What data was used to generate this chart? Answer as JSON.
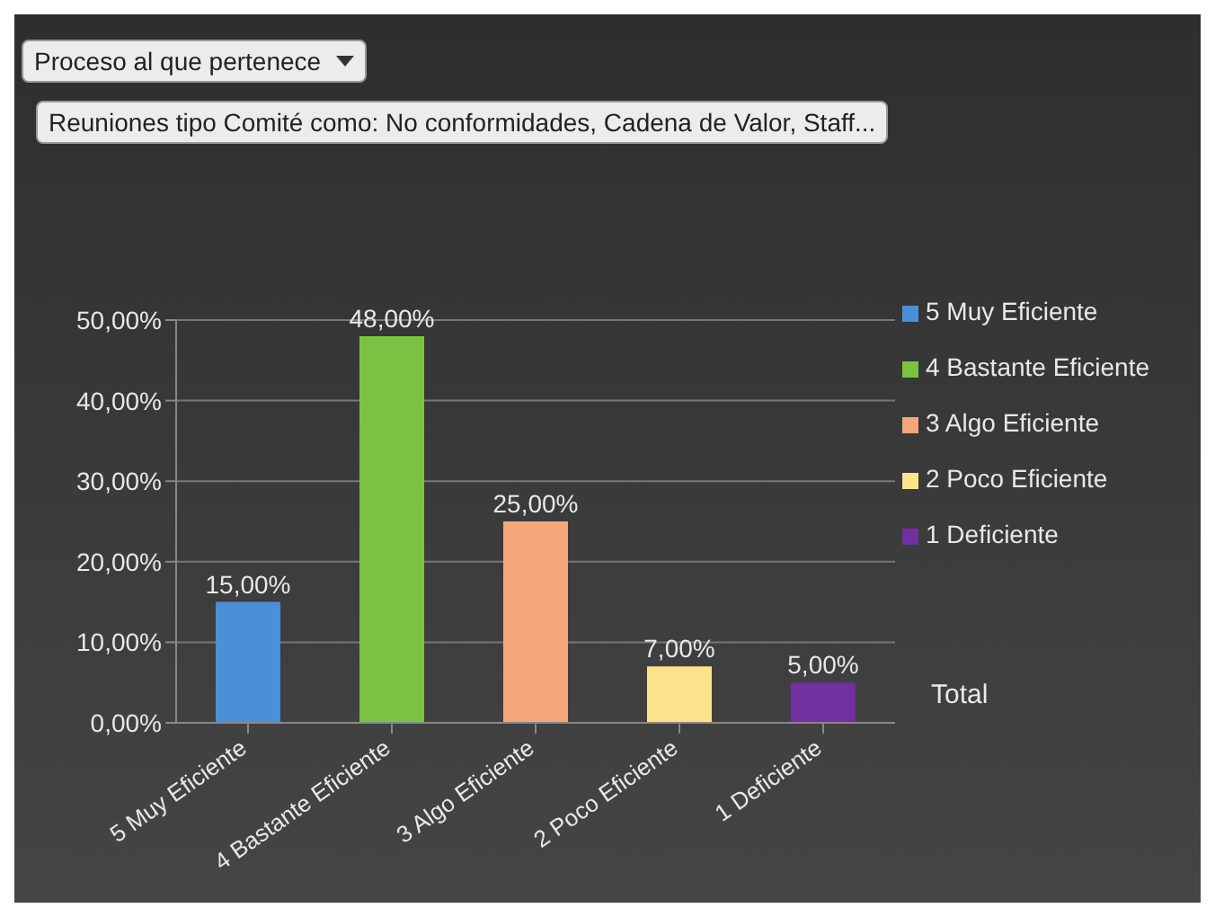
{
  "chart_data": {
    "type": "bar",
    "annotations": [
      "Proceso al que pertenece",
      "Reuniones tipo Comité como: No conformidades, Cadena de Valor, Staff...",
      "Total"
    ],
    "categories": [
      "5 Muy Eficiente",
      "4 Bastante Eficiente",
      "3 Algo Eficiente",
      "2 Poco Eficiente",
      "1 Deficiente"
    ],
    "series": [
      {
        "name": "5 Muy Eficiente",
        "color": "#4a8fd8",
        "values": [
          15,
          null,
          null,
          null,
          null
        ],
        "value_labels": [
          "15,00%",
          null,
          null,
          null,
          null
        ]
      },
      {
        "name": "4 Bastante Eficiente",
        "color": "#7cc242",
        "values": [
          null,
          48,
          null,
          null,
          null
        ],
        "value_labels": [
          null,
          "48,00%",
          null,
          null,
          null
        ]
      },
      {
        "name": "3 Algo Eficiente",
        "color": "#f4a77a",
        "values": [
          null,
          null,
          25,
          null,
          null
        ],
        "value_labels": [
          null,
          null,
          "25,00%",
          null,
          null
        ]
      },
      {
        "name": "2 Poco Eficiente",
        "color": "#fde38c",
        "values": [
          null,
          null,
          null,
          7,
          null
        ],
        "value_labels": [
          null,
          null,
          null,
          "7,00%",
          null
        ]
      },
      {
        "name": "1 Deficiente",
        "color": "#7030a0",
        "values": [
          null,
          null,
          null,
          null,
          5
        ],
        "value_labels": [
          null,
          null,
          null,
          null,
          "5,00%"
        ]
      }
    ],
    "stacked": true,
    "ylim": [
      0,
      50
    ],
    "yticks": [
      {
        "value": 0,
        "label": "0,00%"
      },
      {
        "value": 10,
        "label": "10,00%"
      },
      {
        "value": 20,
        "label": "20,00%"
      },
      {
        "value": 30,
        "label": "30,00%"
      },
      {
        "value": 40,
        "label": "40,00%"
      },
      {
        "value": 50,
        "label": "50,00%"
      }
    ],
    "grid": "y",
    "legend": "right"
  }
}
